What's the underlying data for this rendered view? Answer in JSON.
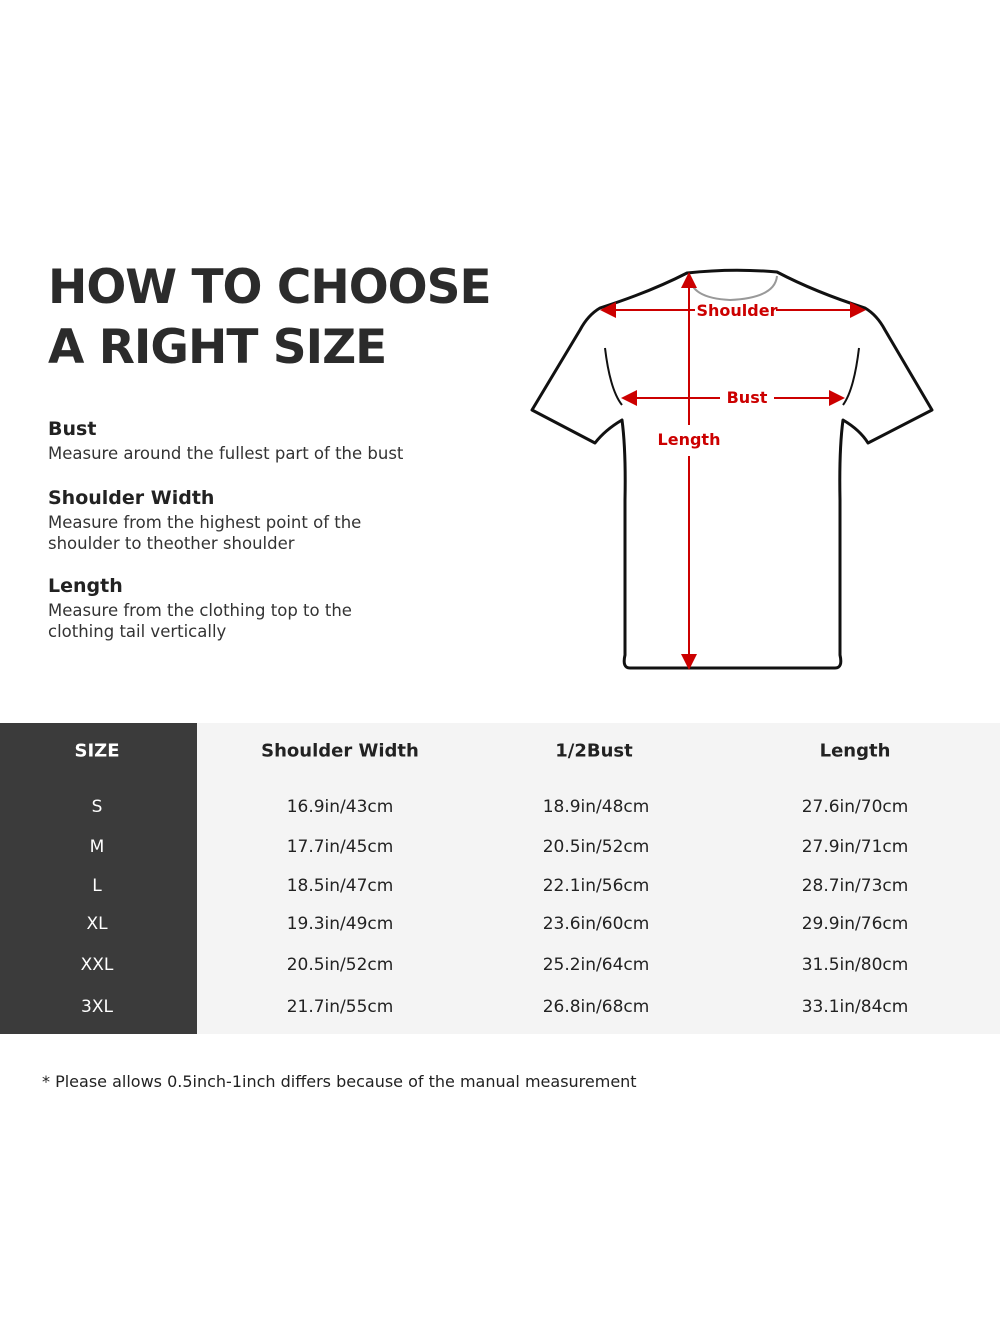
{
  "title": {
    "line1": "HOW TO CHOOSE",
    "line2": "A RIGHT SIZE"
  },
  "guide": [
    {
      "heading": "Bust",
      "lines": [
        "Measure around the fullest part of the bust"
      ]
    },
    {
      "heading": "Shoulder Width",
      "lines": [
        "Measure from the highest point of the",
        "shoulder to theother shoulder"
      ]
    },
    {
      "heading": "Length",
      "lines": [
        "Measure from the clothing top to the",
        "clothing tail vertically"
      ]
    }
  ],
  "diagram": {
    "labels": {
      "shoulder": "Shoulder",
      "bust": "Bust",
      "length": "Length"
    },
    "arrow_color": "#cc0000"
  },
  "table": {
    "headers": [
      "SIZE",
      "Shoulder Width",
      "1/2Bust",
      "Length"
    ],
    "rows": [
      [
        "S",
        "16.9in/43cm",
        "18.9in/48cm",
        "27.6in/70cm"
      ],
      [
        "M",
        "17.7in/45cm",
        "20.5in/52cm",
        "27.9in/71cm"
      ],
      [
        "L",
        "18.5in/47cm",
        "22.1in/56cm",
        "28.7in/73cm"
      ],
      [
        "XL",
        "19.3in/49cm",
        "23.6in/60cm",
        "29.9in/76cm"
      ],
      [
        "XXL",
        "20.5in/52cm",
        "25.2in/64cm",
        "31.5in/80cm"
      ],
      [
        "3XL",
        "21.7in/55cm",
        "26.8in/68cm",
        "33.1in/84cm"
      ]
    ],
    "colors": {
      "size_column": "#3b3b3b",
      "body": "#f4f4f4"
    }
  },
  "note": "* Please allows 0.5inch-1inch differs because of the  manual measurement"
}
